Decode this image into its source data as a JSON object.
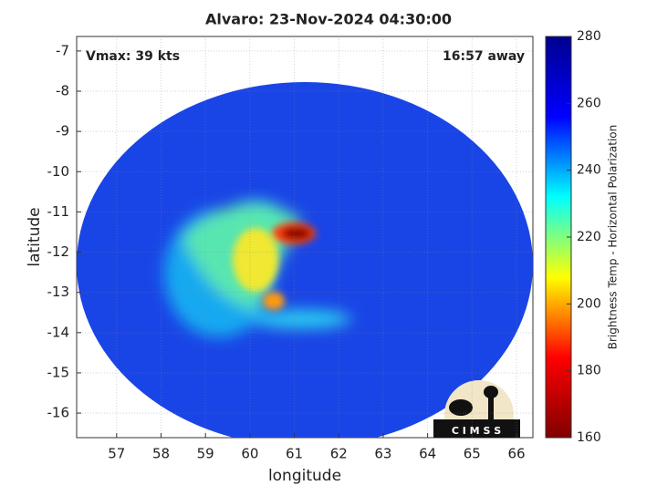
{
  "chart_data": {
    "type": "image",
    "title": "Alvaro: 23-Nov-2024 04:30:00",
    "annotations": [
      "Vmax: 39 kts",
      "16:57 away"
    ],
    "logo_text": "C I M S S",
    "xlabel": "longitude",
    "ylabel": "latitude",
    "xlim": [
      56.1,
      66.37
    ],
    "ylim": [
      -16.61,
      -6.64
    ],
    "xticks": [
      57,
      58,
      59,
      60,
      61,
      62,
      63,
      64,
      65,
      66
    ],
    "yticks": [
      -7,
      -8,
      -9,
      -10,
      -11,
      -12,
      -13,
      -14,
      -15,
      -16
    ],
    "grid": true,
    "colorbar": {
      "label": "Brightness Temp - Horizontal Polarization",
      "lim": [
        160,
        280
      ],
      "ticks": [
        160,
        180,
        200,
        220,
        240,
        260,
        280
      ],
      "colors": [
        "#800000",
        "#ff0000",
        "#ffff00",
        "#00ffff",
        "#0000ff",
        "#00008f"
      ]
    }
  }
}
